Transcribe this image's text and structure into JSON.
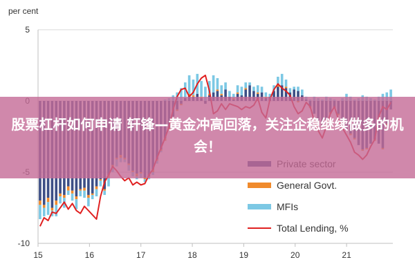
{
  "overlay": {
    "title": "股票杠杆如何申请 轩锋—黄金冲高回落，关注企稳继续做多的机会！"
  },
  "colors": {
    "private_sector": "#3d4f86",
    "general_govt": "#f08a2c",
    "mfis": "#7cc8e4",
    "total_lending": "#e02020",
    "banner": "#c46a96"
  },
  "chart_data": {
    "type": "bar",
    "stacked": true,
    "ylabel": "per cent",
    "ylim": [
      -10,
      5
    ],
    "yticks": [
      5,
      0,
      -5,
      -10
    ],
    "xticks": [
      "15",
      "16",
      "17",
      "18",
      "19",
      "20",
      "21"
    ],
    "xrange": [
      2015.0,
      2021.9
    ],
    "grid": true,
    "legend_position": "bottom-right",
    "series": [
      {
        "name": "Private sector",
        "type": "bar",
        "color": "#3d4f86",
        "values": [
          -7.0,
          -7.3,
          -6.8,
          -7.5,
          -7.0,
          -6.5,
          -6.6,
          -6.0,
          -6.3,
          -6.7,
          -6.2,
          -6.1,
          -6.6,
          -6.5,
          -6.0,
          -5.5,
          -6.2,
          -5.2,
          -4.5,
          -4.0,
          -3.8,
          -4.0,
          -4.4,
          -4.9,
          -5.1,
          -5.0,
          -5.4,
          -5.3,
          -4.8,
          -4.1,
          -3.4,
          -2.6,
          -1.9,
          -1.1,
          -0.6,
          -0.2,
          0.2,
          0.4,
          0.3,
          0.5,
          0.2,
          -0.2,
          0.4,
          0.6,
          0.7,
          0.4,
          0.8,
          0.3,
          0.1,
          0.5,
          0.4,
          0.8,
          1.1,
          0.7,
          0.5,
          0.6,
          0.2,
          0.3,
          0.7,
          1.0,
          1.1,
          0.9,
          0.6,
          0.8,
          0.7,
          0.4,
          0.1,
          -0.4,
          -0.9,
          -1.4,
          -1.7,
          -1.3,
          -0.8,
          -0.5,
          -0.9,
          -1.4,
          -2.0,
          -2.3,
          -2.6,
          -3.1,
          -3.4,
          -3.3,
          -3.0,
          -2.7,
          -3.0,
          -3.3,
          -1.6,
          -0.6
        ]
      },
      {
        "name": "General Govt.",
        "type": "bar",
        "color": "#f08a2c",
        "values": [
          -0.3,
          -0.2,
          -0.3,
          -0.2,
          -0.3,
          -0.2,
          -0.2,
          -0.3,
          -0.2,
          -0.2,
          -0.1,
          -0.2,
          -0.2,
          -0.1,
          -0.2,
          -0.1,
          -0.1,
          -0.2,
          -0.1,
          -0.1,
          -0.2,
          -0.1,
          -0.1,
          -0.1,
          -0.2,
          -0.1,
          -0.1,
          -0.1,
          -0.2,
          -0.1,
          -0.1,
          -0.2,
          -0.1,
          0.0,
          -0.1,
          -0.1,
          0.0,
          0.1,
          0.1,
          0.0,
          0.1,
          0.0,
          0.1,
          0.0,
          0.1,
          0.1,
          0.0,
          0.0,
          0.1,
          0.1,
          0.0,
          0.1,
          0.0,
          0.0,
          0.1,
          0.0,
          0.1,
          0.0,
          0.0,
          0.1,
          0.0,
          0.1,
          0.0,
          0.0,
          -0.1,
          0.0,
          0.0,
          -0.1,
          0.0,
          -0.1,
          -0.1,
          0.0,
          -0.1,
          0.0,
          -0.1,
          -0.1,
          0.0,
          -0.1,
          -0.1,
          0.0,
          -0.1,
          -0.1,
          0.0,
          -0.1,
          0.0,
          -0.1,
          -0.1,
          0.0
        ]
      },
      {
        "name": "MFIs",
        "type": "bar",
        "color": "#7cc8e4",
        "values": [
          -1.0,
          -0.6,
          -0.9,
          -0.4,
          -0.8,
          -0.5,
          -0.7,
          -0.3,
          -0.5,
          -0.7,
          -0.4,
          -0.5,
          -0.6,
          -0.3,
          -0.5,
          -0.4,
          -0.3,
          -0.6,
          -0.4,
          -0.5,
          -0.3,
          -0.2,
          -0.4,
          -0.3,
          -0.2,
          -0.3,
          -0.2,
          -0.1,
          -0.2,
          -0.2,
          -0.1,
          0.1,
          0.2,
          0.4,
          0.6,
          0.9,
          1.1,
          1.3,
          1.1,
          1.4,
          1.1,
          1.0,
          0.9,
          1.2,
          0.8,
          0.6,
          0.5,
          0.4,
          0.3,
          0.5,
          0.6,
          0.4,
          0.2,
          0.3,
          0.5,
          0.4,
          0.3,
          0.2,
          0.4,
          0.6,
          0.8,
          0.5,
          0.3,
          0.2,
          0.3,
          0.4,
          0.2,
          0.1,
          0.3,
          0.2,
          0.1,
          0.3,
          0.2,
          0.1,
          0.0,
          0.2,
          0.5,
          0.3,
          0.1,
          0.2,
          0.4,
          0.3,
          0.2,
          0.1,
          0.3,
          0.5,
          0.6,
          0.8
        ]
      },
      {
        "name": "Total Lending, %",
        "type": "line",
        "color": "#e02020",
        "values": [
          -8.8,
          -8.2,
          -8.4,
          -7.8,
          -7.9,
          -7.5,
          -7.1,
          -7.6,
          -7.2,
          -7.7,
          -7.9,
          -7.4,
          -7.7,
          -8.0,
          -8.3,
          -6.7,
          -5.7,
          -5.2,
          -4.6,
          -4.9,
          -5.3,
          -5.6,
          -5.4,
          -5.9,
          -5.7,
          -5.9,
          -5.8,
          -5.2,
          -4.8,
          -4.0,
          -3.3,
          -2.6,
          -1.8,
          -0.6,
          0.3,
          0.8,
          0.9,
          0.3,
          0.6,
          1.2,
          1.6,
          1.8,
          0.7,
          -0.9,
          -0.7,
          -0.2,
          -0.6,
          -0.2,
          -0.3,
          -0.4,
          -0.6,
          -0.4,
          -0.5,
          -0.3,
          0.2,
          -0.8,
          -1.2,
          0.1,
          0.8,
          1.2,
          0.9,
          0.7,
          0.4,
          -0.4,
          -0.9,
          -0.7,
          -0.1,
          -0.4,
          -1.4,
          -2.1,
          -2.6,
          -1.8,
          -0.9,
          -0.4,
          -1.3,
          -1.9,
          -2.4,
          -2.9,
          -3.6,
          -3.8,
          -4.1,
          -3.8,
          -3.2,
          -2.7,
          -1.1,
          -0.4,
          -0.6,
          -0.1
        ]
      }
    ]
  }
}
